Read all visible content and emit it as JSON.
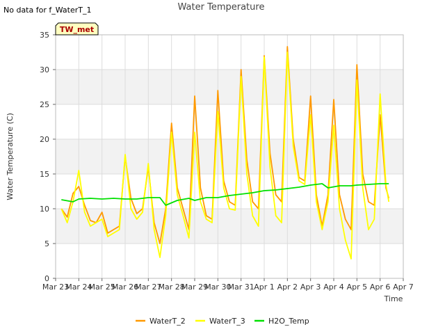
{
  "page": {
    "no_data_note": "No data for f_WaterT_1",
    "station_badge": "TW_met"
  },
  "colors": {
    "band": "#f2f2f2",
    "grid": "#dcdcdc",
    "badge_bg": "#ffffc0",
    "badge_border": "#000000"
  },
  "chart_data": {
    "type": "line",
    "title": "Water Temperature",
    "xlabel": "Time",
    "ylabel": "Water Temperature (C)",
    "ylim": [
      0,
      35
    ],
    "yticks": [
      0,
      5,
      10,
      15,
      20,
      25,
      30,
      35
    ],
    "xlim": [
      "2023-03-23",
      "2023-04-07"
    ],
    "xticks": [
      {
        "date": "2023-03-23",
        "label": "Mar 23"
      },
      {
        "date": "2023-03-24",
        "label": "Mar 24"
      },
      {
        "date": "2023-03-25",
        "label": "Mar 25"
      },
      {
        "date": "2023-03-26",
        "label": "Mar 26"
      },
      {
        "date": "2023-03-27",
        "label": "Mar 27"
      },
      {
        "date": "2023-03-28",
        "label": "Mar 28"
      },
      {
        "date": "2023-03-29",
        "label": "Mar 29"
      },
      {
        "date": "2023-03-30",
        "label": "Mar 30"
      },
      {
        "date": "2023-03-31",
        "label": "Mar 31"
      },
      {
        "date": "2023-04-01",
        "label": "Apr 1"
      },
      {
        "date": "2023-04-02",
        "label": "Apr 2"
      },
      {
        "date": "2023-04-03",
        "label": "Apr 3"
      },
      {
        "date": "2023-04-04",
        "label": "Apr 4"
      },
      {
        "date": "2023-04-05",
        "label": "Apr 5"
      },
      {
        "date": "2023-04-06",
        "label": "Apr 6"
      },
      {
        "date": "2023-04-07",
        "label": "Apr 7"
      }
    ],
    "grid": true,
    "legend": "bottom",
    "series": [
      {
        "name": "WaterT_2",
        "color": "#ff9900",
        "points": [
          [
            "2023-03-23 06:00",
            10.0
          ],
          [
            "2023-03-23 12:00",
            8.8
          ],
          [
            "2023-03-23 18:00",
            12.2
          ],
          [
            "2023-03-24 00:00",
            13.2
          ],
          [
            "2023-03-24 06:00",
            10.5
          ],
          [
            "2023-03-24 12:00",
            8.3
          ],
          [
            "2023-03-24 18:00",
            8.0
          ],
          [
            "2023-03-25 00:00",
            9.5
          ],
          [
            "2023-03-25 06:00",
            6.5
          ],
          [
            "2023-03-25 12:00",
            7.0
          ],
          [
            "2023-03-25 18:00",
            7.5
          ],
          [
            "2023-03-26 00:00",
            17.5
          ],
          [
            "2023-03-26 06:00",
            11.5
          ],
          [
            "2023-03-26 12:00",
            9.3
          ],
          [
            "2023-03-26 18:00",
            10.0
          ],
          [
            "2023-03-27 00:00",
            16.0
          ],
          [
            "2023-03-27 06:00",
            8.0
          ],
          [
            "2023-03-27 12:00",
            5.0
          ],
          [
            "2023-03-27 18:00",
            10.0
          ],
          [
            "2023-03-28 00:00",
            22.3
          ],
          [
            "2023-03-28 06:00",
            13.0
          ],
          [
            "2023-03-28 12:00",
            10.0
          ],
          [
            "2023-03-28 18:00",
            7.0
          ],
          [
            "2023-03-29 00:00",
            26.2
          ],
          [
            "2023-03-29 06:00",
            13.0
          ],
          [
            "2023-03-29 12:00",
            9.0
          ],
          [
            "2023-03-29 18:00",
            8.5
          ],
          [
            "2023-03-30 00:00",
            27.0
          ],
          [
            "2023-03-30 06:00",
            14.0
          ],
          [
            "2023-03-30 12:00",
            11.0
          ],
          [
            "2023-03-30 18:00",
            10.5
          ],
          [
            "2023-03-31 00:00",
            30.0
          ],
          [
            "2023-03-31 06:00",
            17.0
          ],
          [
            "2023-03-31 12:00",
            11.0
          ],
          [
            "2023-03-31 18:00",
            10.0
          ],
          [
            "2023-04-01 00:00",
            32.0
          ],
          [
            "2023-04-01 06:00",
            18.0
          ],
          [
            "2023-04-01 12:00",
            12.0
          ],
          [
            "2023-04-01 18:00",
            11.0
          ],
          [
            "2023-04-02 00:00",
            33.3
          ],
          [
            "2023-04-02 06:00",
            20.0
          ],
          [
            "2023-04-02 12:00",
            14.5
          ],
          [
            "2023-04-02 18:00",
            14.0
          ],
          [
            "2023-04-03 00:00",
            26.2
          ],
          [
            "2023-04-03 06:00",
            12.0
          ],
          [
            "2023-04-03 12:00",
            7.5
          ],
          [
            "2023-04-03 18:00",
            12.0
          ],
          [
            "2023-04-04 00:00",
            25.7
          ],
          [
            "2023-04-04 06:00",
            12.0
          ],
          [
            "2023-04-04 12:00",
            8.5
          ],
          [
            "2023-04-04 18:00",
            7.0
          ],
          [
            "2023-04-05 00:00",
            30.7
          ],
          [
            "2023-04-05 06:00",
            15.0
          ],
          [
            "2023-04-05 12:00",
            11.0
          ],
          [
            "2023-04-05 18:00",
            10.5
          ],
          [
            "2023-04-06 00:00",
            23.5
          ],
          [
            "2023-04-06 06:00",
            13.0
          ],
          [
            "2023-04-06 09:00",
            11.5
          ]
        ]
      },
      {
        "name": "WaterT_3",
        "color": "#ffff00",
        "points": [
          [
            "2023-03-23 06:00",
            10.0
          ],
          [
            "2023-03-23 12:00",
            8.0
          ],
          [
            "2023-03-23 18:00",
            11.0
          ],
          [
            "2023-03-24 00:00",
            15.5
          ],
          [
            "2023-03-24 06:00",
            9.5
          ],
          [
            "2023-03-24 12:00",
            7.5
          ],
          [
            "2023-03-24 18:00",
            8.0
          ],
          [
            "2023-03-25 00:00",
            8.5
          ],
          [
            "2023-03-25 06:00",
            6.0
          ],
          [
            "2023-03-25 12:00",
            6.5
          ],
          [
            "2023-03-25 18:00",
            7.0
          ],
          [
            "2023-03-26 00:00",
            17.8
          ],
          [
            "2023-03-26 06:00",
            10.0
          ],
          [
            "2023-03-26 12:00",
            8.5
          ],
          [
            "2023-03-26 18:00",
            9.5
          ],
          [
            "2023-03-27 00:00",
            16.5
          ],
          [
            "2023-03-27 06:00",
            7.0
          ],
          [
            "2023-03-27 12:00",
            3.0
          ],
          [
            "2023-03-27 18:00",
            9.0
          ],
          [
            "2023-03-28 00:00",
            21.0
          ],
          [
            "2023-03-28 06:00",
            12.0
          ],
          [
            "2023-03-28 12:00",
            9.0
          ],
          [
            "2023-03-28 18:00",
            5.8
          ],
          [
            "2023-03-29 00:00",
            21.0
          ],
          [
            "2023-03-29 06:00",
            11.0
          ],
          [
            "2023-03-29 12:00",
            8.5
          ],
          [
            "2023-03-29 18:00",
            8.0
          ],
          [
            "2023-03-30 00:00",
            24.0
          ],
          [
            "2023-03-30 06:00",
            13.0
          ],
          [
            "2023-03-30 12:00",
            10.0
          ],
          [
            "2023-03-30 18:00",
            9.8
          ],
          [
            "2023-03-31 00:00",
            29.0
          ],
          [
            "2023-03-31 06:00",
            15.0
          ],
          [
            "2023-03-31 12:00",
            9.0
          ],
          [
            "2023-03-31 18:00",
            7.5
          ],
          [
            "2023-04-01 00:00",
            31.8
          ],
          [
            "2023-04-01 06:00",
            16.0
          ],
          [
            "2023-04-01 12:00",
            9.0
          ],
          [
            "2023-04-01 18:00",
            8.0
          ],
          [
            "2023-04-02 00:00",
            32.5
          ],
          [
            "2023-04-02 06:00",
            19.0
          ],
          [
            "2023-04-02 12:00",
            14.0
          ],
          [
            "2023-04-02 18:00",
            13.5
          ],
          [
            "2023-04-03 00:00",
            23.5
          ],
          [
            "2023-04-03 06:00",
            11.0
          ],
          [
            "2023-04-03 12:00",
            7.0
          ],
          [
            "2023-04-03 18:00",
            11.0
          ],
          [
            "2023-04-04 00:00",
            22.0
          ],
          [
            "2023-04-04 06:00",
            10.0
          ],
          [
            "2023-04-04 12:00",
            5.5
          ],
          [
            "2023-04-04 18:00",
            2.8
          ],
          [
            "2023-04-05 00:00",
            28.5
          ],
          [
            "2023-04-05 06:00",
            13.0
          ],
          [
            "2023-04-05 12:00",
            7.0
          ],
          [
            "2023-04-05 18:00",
            8.5
          ],
          [
            "2023-04-06 00:00",
            26.5
          ],
          [
            "2023-04-06 06:00",
            13.5
          ],
          [
            "2023-04-06 09:00",
            11.0
          ]
        ]
      },
      {
        "name": "H2O_Temp",
        "color": "#00e000",
        "points": [
          [
            "2023-03-23 06:00",
            11.3
          ],
          [
            "2023-03-23 18:00",
            11.0
          ],
          [
            "2023-03-24 00:00",
            11.4
          ],
          [
            "2023-03-24 12:00",
            11.5
          ],
          [
            "2023-03-25 00:00",
            11.4
          ],
          [
            "2023-03-25 12:00",
            11.5
          ],
          [
            "2023-03-26 00:00",
            11.4
          ],
          [
            "2023-03-26 12:00",
            11.4
          ],
          [
            "2023-03-27 00:00",
            11.6
          ],
          [
            "2023-03-27 12:00",
            11.6
          ],
          [
            "2023-03-27 18:00",
            10.5
          ],
          [
            "2023-03-28 06:00",
            11.2
          ],
          [
            "2023-03-28 18:00",
            11.5
          ],
          [
            "2023-03-29 00:00",
            11.2
          ],
          [
            "2023-03-29 12:00",
            11.6
          ],
          [
            "2023-03-30 00:00",
            11.6
          ],
          [
            "2023-03-30 12:00",
            11.9
          ],
          [
            "2023-03-31 00:00",
            12.1
          ],
          [
            "2023-03-31 12:00",
            12.3
          ],
          [
            "2023-04-01 00:00",
            12.6
          ],
          [
            "2023-04-01 12:00",
            12.7
          ],
          [
            "2023-04-02 00:00",
            12.9
          ],
          [
            "2023-04-02 12:00",
            13.1
          ],
          [
            "2023-04-03 00:00",
            13.4
          ],
          [
            "2023-04-03 12:00",
            13.6
          ],
          [
            "2023-04-03 18:00",
            13.0
          ],
          [
            "2023-04-04 06:00",
            13.3
          ],
          [
            "2023-04-04 18:00",
            13.3
          ],
          [
            "2023-04-05 00:00",
            13.4
          ],
          [
            "2023-04-05 12:00",
            13.5
          ],
          [
            "2023-04-06 00:00",
            13.6
          ],
          [
            "2023-04-06 09:00",
            13.6
          ]
        ]
      }
    ]
  }
}
